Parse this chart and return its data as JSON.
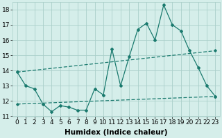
{
  "title": "",
  "xlabel": "Humidex (Indice chaleur)",
  "background_color": "#d5eeea",
  "grid_color": "#aacfca",
  "line_color": "#1a7a6e",
  "xlim": [
    -0.5,
    23.5
  ],
  "ylim": [
    11,
    18.5
  ],
  "yticks": [
    11,
    12,
    13,
    14,
    15,
    16,
    17,
    18
  ],
  "xticks": [
    0,
    1,
    2,
    3,
    4,
    5,
    6,
    7,
    8,
    9,
    10,
    11,
    12,
    13,
    14,
    15,
    16,
    17,
    18,
    19,
    20,
    21,
    22,
    23
  ],
  "series1_x": [
    0,
    1,
    2,
    3,
    4,
    5,
    6,
    7,
    8,
    9,
    10,
    11,
    12,
    13,
    14,
    15,
    16,
    17,
    18,
    19,
    20,
    21,
    22,
    23
  ],
  "series1_y": [
    13.9,
    13.0,
    12.8,
    11.8,
    11.3,
    11.7,
    11.6,
    11.4,
    11.4,
    12.8,
    12.4,
    15.4,
    13.0,
    14.9,
    16.7,
    17.1,
    16.0,
    18.3,
    17.0,
    16.6,
    15.3,
    14.2,
    13.0,
    12.3
  ],
  "series2_x": [
    0,
    23
  ],
  "series2_y": [
    13.9,
    15.3
  ],
  "series3_x": [
    0,
    23
  ],
  "series3_y": [
    11.8,
    12.3
  ],
  "xlabel_fontsize": 7.5,
  "tick_fontsize": 6.5
}
